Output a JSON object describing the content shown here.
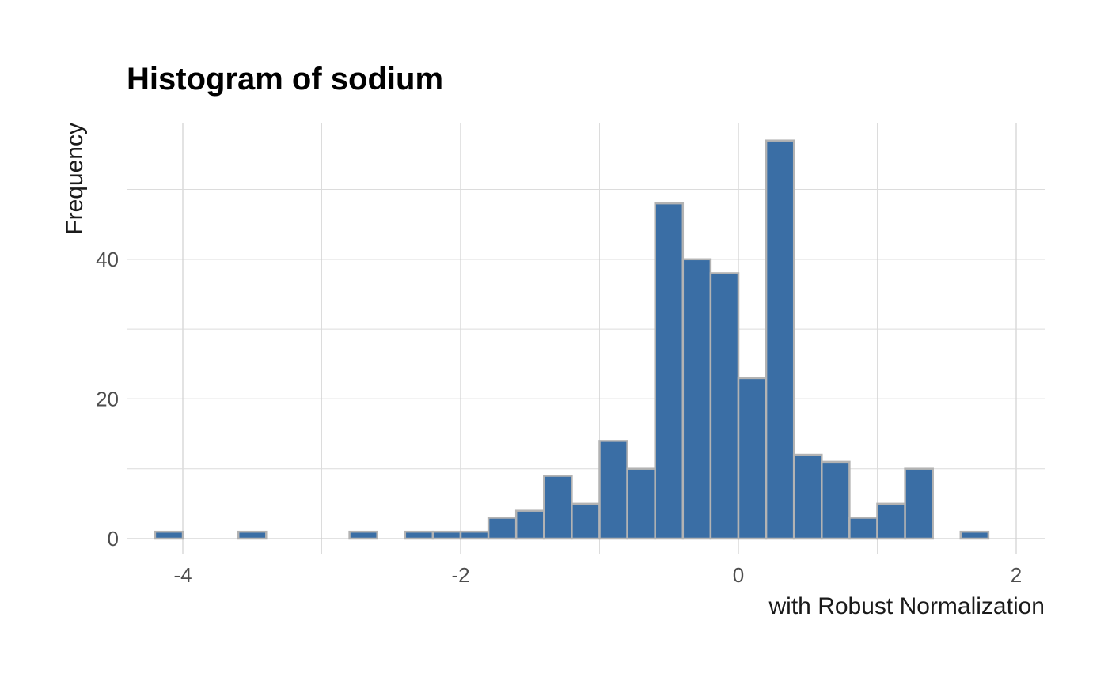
{
  "chart_data": {
    "type": "bar",
    "subtype": "histogram",
    "title": "Histogram of sodium",
    "xlabel": "with Robust Normalization",
    "ylabel": "Frequency",
    "bin_width": 0.2,
    "bin_start": -4.2,
    "counts": [
      1,
      0,
      0,
      1,
      0,
      0,
      0,
      1,
      0,
      1,
      1,
      1,
      3,
      4,
      9,
      5,
      14,
      10,
      48,
      40,
      38,
      23,
      57,
      12,
      11,
      3,
      5,
      10,
      0,
      1
    ],
    "xlim": [
      -4.3,
      2.2
    ],
    "ylim": [
      0,
      57
    ],
    "x_ticks": [
      "-4",
      "-2",
      "0",
      "2"
    ],
    "y_ticks": [
      "0",
      "20",
      "40"
    ],
    "grid": true,
    "colors": {
      "bar_fill": "#3a6ea5",
      "bar_outline": "#b3b3b3"
    }
  }
}
